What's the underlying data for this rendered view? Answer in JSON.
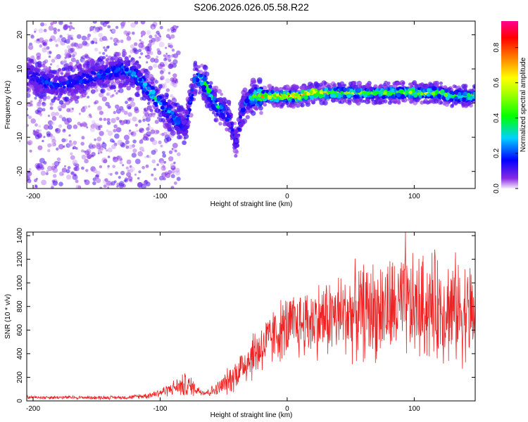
{
  "title": "S206.2026.026.05.58.R22",
  "chart_data": [
    {
      "type": "heatmap",
      "name": "spectrogram",
      "xlabel": "Height of straight line (km)",
      "ylabel": "Frequency (Hz)",
      "xlim": [
        -205,
        148
      ],
      "ylim": [
        -25,
        24
      ],
      "xticks": [
        -200,
        -100,
        0,
        100
      ],
      "yticks": [
        -20,
        -10,
        0,
        10,
        20
      ],
      "colorbar": {
        "label": "Normalized spectral amplitude",
        "range": [
          0.0,
          0.95
        ],
        "ticks": [
          0.0,
          0.2,
          0.4,
          0.6,
          0.8
        ],
        "tick_labels": [
          "0.0",
          "0.2",
          "0.4",
          "0.6",
          "0.8"
        ]
      },
      "ridge": {
        "x": [
          -200,
          -190,
          -180,
          -170,
          -160,
          -150,
          -140,
          -130,
          -120,
          -110,
          -105,
          -100,
          -95,
          -90,
          -85,
          -80,
          -72,
          -65,
          -60,
          -55,
          -50,
          -45,
          -40,
          -35,
          -30,
          -25,
          -20,
          -10,
          0,
          10,
          20,
          30,
          40,
          50,
          60,
          70,
          80,
          90,
          100,
          110,
          120,
          130,
          140,
          148
        ],
        "freq": [
          8,
          6,
          5,
          6,
          7,
          8,
          9,
          10,
          8,
          4,
          2,
          0,
          -2,
          -4,
          -6,
          -7,
          8,
          6,
          2,
          -1,
          -2,
          -5,
          -12,
          -1,
          1,
          2,
          2,
          2,
          2,
          2,
          3,
          3,
          3,
          3,
          3,
          3,
          3,
          3,
          3,
          3,
          3,
          2,
          2,
          2
        ],
        "amplitude": [
          0.18,
          0.22,
          0.22,
          0.2,
          0.22,
          0.25,
          0.25,
          0.25,
          0.3,
          0.35,
          0.4,
          0.3,
          0.3,
          0.3,
          0.25,
          0.15,
          0.3,
          0.45,
          0.4,
          0.35,
          0.3,
          0.22,
          0.15,
          0.2,
          0.3,
          0.5,
          0.7,
          0.75,
          0.8,
          0.85,
          0.8,
          0.7,
          0.6,
          0.55,
          0.5,
          0.5,
          0.55,
          0.5,
          0.6,
          0.55,
          0.55,
          0.5,
          0.45,
          0.5
        ]
      }
    },
    {
      "type": "line",
      "name": "snr",
      "xlabel": "Height of straight line (km)",
      "ylabel": "SNR (10 * v/v)",
      "xlim": [
        -205,
        148
      ],
      "ylim": [
        0,
        1430
      ],
      "xticks": [
        -200,
        -100,
        0,
        100
      ],
      "yticks": [
        0,
        200,
        400,
        600,
        800,
        1000,
        1200,
        1400
      ],
      "color": "#ff0000",
      "envelope": {
        "x": [
          -205,
          -180,
          -150,
          -125,
          -110,
          -100,
          -95,
          -90,
          -85,
          -80,
          -75,
          -70,
          -65,
          -60,
          -55,
          -50,
          -45,
          -40,
          -35,
          -30,
          -25,
          -20,
          -15,
          -10,
          -5,
          0,
          10,
          20,
          30,
          40,
          50,
          60,
          70,
          80,
          90,
          100,
          110,
          120,
          130,
          140,
          148
        ],
        "mean": [
          30,
          30,
          28,
          30,
          45,
          70,
          90,
          110,
          125,
          130,
          120,
          90,
          70,
          80,
          100,
          140,
          180,
          240,
          300,
          360,
          410,
          460,
          500,
          560,
          600,
          620,
          650,
          680,
          700,
          720,
          740,
          760,
          770,
          780,
          790,
          780,
          800,
          800,
          780,
          760,
          740
        ],
        "spread": [
          15,
          15,
          15,
          15,
          25,
          40,
          50,
          60,
          80,
          110,
          80,
          40,
          30,
          45,
          60,
          90,
          120,
          140,
          170,
          200,
          220,
          230,
          230,
          240,
          260,
          270,
          290,
          310,
          330,
          350,
          380,
          400,
          420,
          430,
          440,
          440,
          450,
          450,
          450,
          430,
          420
        ]
      },
      "peak": {
        "x": 93,
        "value": 1430
      }
    }
  ]
}
